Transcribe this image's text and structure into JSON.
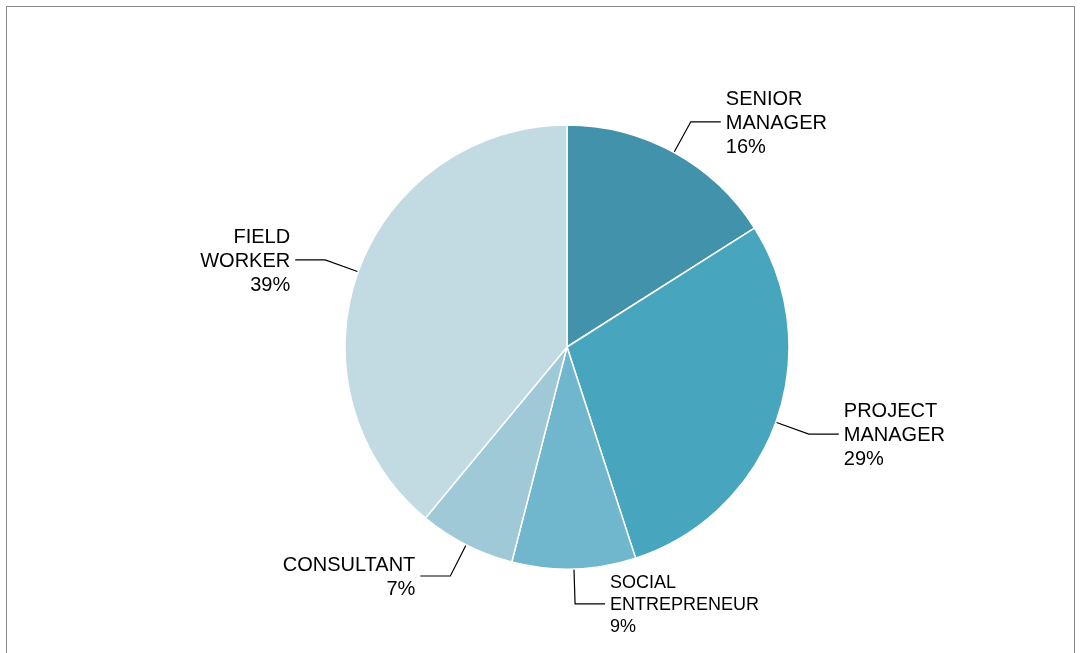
{
  "chart_data": {
    "type": "pie",
    "categories": [
      "SENIOR MANAGER",
      "PROJECT MANAGER",
      "SOCIAL ENTREPRENEUR",
      "CONSULTANT",
      "FIELD WORKER"
    ],
    "values": [
      16,
      29,
      9,
      7,
      39
    ],
    "value_labels": [
      "16%",
      "29%",
      "9%",
      "7%",
      "39%"
    ],
    "colors": [
      "#4292ab",
      "#47a5bd",
      "#70b6cc",
      "#a0c9d8",
      "#c2dbe3"
    ]
  }
}
